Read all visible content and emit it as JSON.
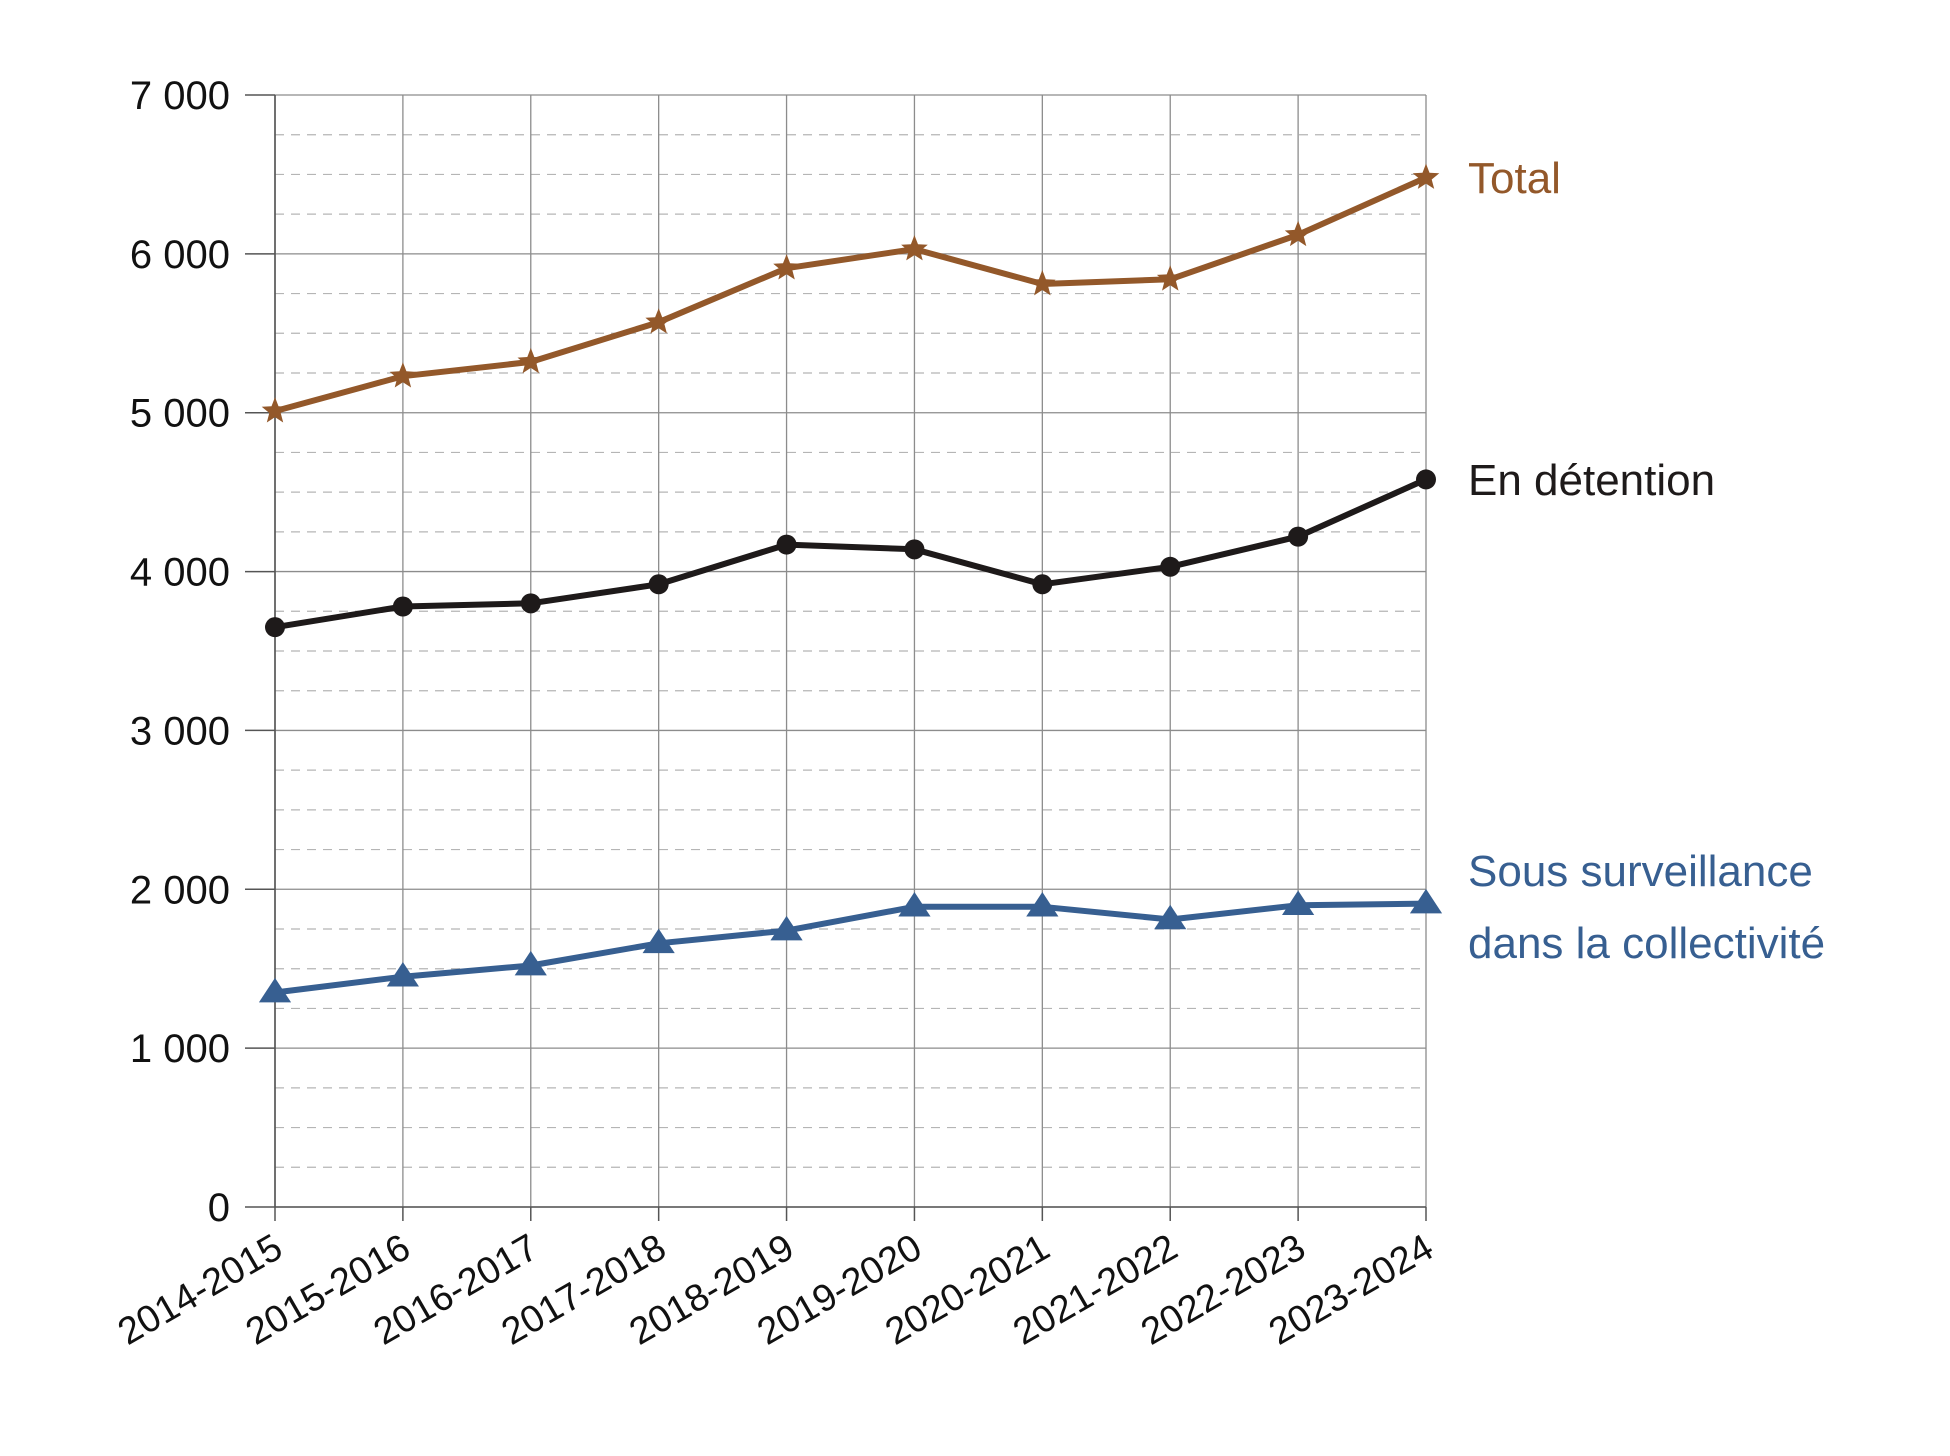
{
  "chart_data": {
    "type": "line",
    "categories": [
      "2014-2015",
      "2015-2016",
      "2016-2017",
      "2017-2018",
      "2018-2019",
      "2019-2020",
      "2020-2021",
      "2021-2022",
      "2022-2023",
      "2023-2024"
    ],
    "ylim": [
      0,
      7000
    ],
    "yticks": [
      0,
      1000,
      2000,
      3000,
      4000,
      5000,
      6000,
      7000
    ],
    "ytick_labels": [
      "0",
      "1 000",
      "2 000",
      "3 000",
      "4 000",
      "5 000",
      "6 000",
      "7 000"
    ],
    "grid": true,
    "series": [
      {
        "name": "Total",
        "label_lines": [
          "Total"
        ],
        "color": "#93582a",
        "marker": "star",
        "values": [
          5010,
          5230,
          5320,
          5570,
          5910,
          6030,
          5810,
          5840,
          6120,
          6480
        ]
      },
      {
        "name": "En détention",
        "label_lines": [
          "En détention"
        ],
        "color": "#1e1a1a",
        "marker": "circle",
        "values": [
          3650,
          3780,
          3800,
          3920,
          4170,
          4140,
          3920,
          4030,
          4220,
          4580
        ]
      },
      {
        "name": "Sous surveillance dans la collectivité",
        "label_lines": [
          "Sous surveillance",
          "dans la collectivité"
        ],
        "color": "#375f91",
        "marker": "triangle",
        "values": [
          1350,
          1450,
          1520,
          1660,
          1740,
          1890,
          1890,
          1810,
          1900,
          1910
        ]
      }
    ]
  }
}
